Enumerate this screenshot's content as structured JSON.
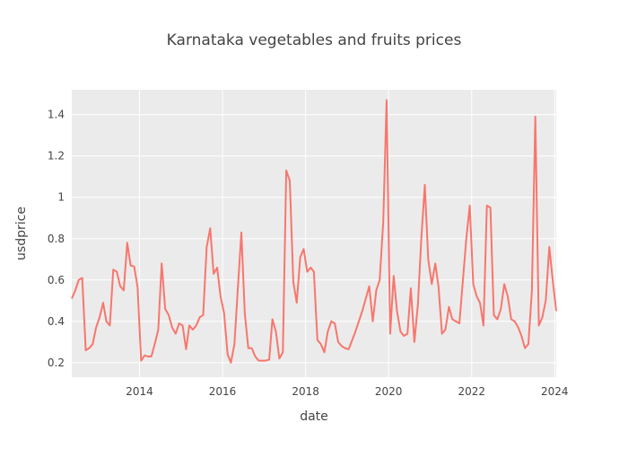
{
  "chart_data": {
    "type": "line",
    "title": "Karnataka vegetables and fruits prices",
    "xlabel": "date",
    "ylabel": "usdprice",
    "x_ticks": [
      "2014",
      "2016",
      "2018",
      "2020",
      "2022",
      "2024"
    ],
    "y_ticks": [
      "0.2",
      "0.4",
      "0.6",
      "0.8",
      "1",
      "1.2",
      "1.4"
    ],
    "xlim": [
      "2012-05-15",
      "2024-01-15"
    ],
    "ylim": [
      0.13,
      1.52
    ],
    "grid": true,
    "colors": {
      "plot_bg": "#ebebeb",
      "grid": "#ffffff",
      "line": "#f8766d"
    },
    "series": [
      {
        "name": "",
        "color": "#f8766d",
        "x": [
          "2012-05-15",
          "2012-06-15",
          "2012-07-15",
          "2012-08-15",
          "2012-09-15",
          "2012-10-15",
          "2012-11-15",
          "2012-12-15",
          "2013-01-15",
          "2013-02-15",
          "2013-03-15",
          "2013-04-15",
          "2013-05-15",
          "2013-06-15",
          "2013-07-15",
          "2013-08-15",
          "2013-09-15",
          "2013-10-15",
          "2013-11-15",
          "2013-12-15",
          "2014-01-15",
          "2014-02-15",
          "2014-03-15",
          "2014-04-15",
          "2014-05-15",
          "2014-06-15",
          "2014-07-15",
          "2014-08-15",
          "2014-09-15",
          "2014-10-15",
          "2014-11-15",
          "2014-12-15",
          "2015-01-15",
          "2015-02-15",
          "2015-03-15",
          "2015-04-15",
          "2015-05-15",
          "2015-06-15",
          "2015-07-15",
          "2015-08-15",
          "2015-09-15",
          "2015-10-15",
          "2015-11-15",
          "2015-12-15",
          "2016-01-15",
          "2016-02-15",
          "2016-03-15",
          "2016-04-15",
          "2016-05-15",
          "2016-06-15",
          "2016-07-15",
          "2016-08-15",
          "2016-09-15",
          "2016-10-15",
          "2016-11-15",
          "2016-12-15",
          "2017-01-15",
          "2017-02-15",
          "2017-03-15",
          "2017-04-15",
          "2017-05-15",
          "2017-06-15",
          "2017-07-15",
          "2017-08-15",
          "2017-09-15",
          "2017-10-15",
          "2017-11-15",
          "2017-12-15",
          "2018-01-15",
          "2018-02-15",
          "2018-03-15",
          "2018-04-15",
          "2018-05-15",
          "2018-06-15",
          "2018-07-15",
          "2018-08-15",
          "2018-09-15",
          "2018-10-15",
          "2018-11-15",
          "2018-12-15",
          "2019-01-15",
          "2019-03-15",
          "2019-05-15",
          "2019-07-15",
          "2019-08-15",
          "2019-09-15",
          "2019-10-15",
          "2019-11-15",
          "2019-12-15",
          "2020-01-15",
          "2020-02-15",
          "2020-03-15",
          "2020-04-15",
          "2020-05-15",
          "2020-06-15",
          "2020-07-15",
          "2020-08-15",
          "2020-09-15",
          "2020-10-15",
          "2020-11-15",
          "2020-12-15",
          "2021-01-15",
          "2021-02-15",
          "2021-03-15",
          "2021-04-15",
          "2021-05-15",
          "2021-06-15",
          "2021-07-15",
          "2021-08-15",
          "2021-09-15",
          "2021-11-15",
          "2021-12-15",
          "2022-01-15",
          "2022-02-15",
          "2022-03-15",
          "2022-04-15",
          "2022-05-15",
          "2022-06-15",
          "2022-07-15",
          "2022-08-15",
          "2022-09-15",
          "2022-10-15",
          "2022-11-15",
          "2022-12-15",
          "2023-01-15",
          "2023-02-15",
          "2023-03-15",
          "2023-04-15",
          "2023-05-15",
          "2023-06-15",
          "2023-07-15",
          "2023-08-15",
          "2023-09-15",
          "2023-10-15",
          "2023-11-15",
          "2023-12-15",
          "2024-01-15"
        ],
        "y": [
          0.51,
          0.55,
          0.6,
          0.61,
          0.26,
          0.27,
          0.29,
          0.37,
          0.42,
          0.49,
          0.4,
          0.38,
          0.65,
          0.64,
          0.57,
          0.55,
          0.78,
          0.67,
          0.665,
          0.565,
          0.21,
          0.235,
          0.23,
          0.23,
          0.29,
          0.36,
          0.68,
          0.46,
          0.43,
          0.37,
          0.34,
          0.39,
          0.38,
          0.265,
          0.38,
          0.36,
          0.38,
          0.42,
          0.43,
          0.76,
          0.85,
          0.63,
          0.66,
          0.52,
          0.44,
          0.24,
          0.2,
          0.29,
          0.56,
          0.83,
          0.44,
          0.27,
          0.27,
          0.23,
          0.21,
          0.21,
          0.21,
          0.215,
          0.41,
          0.35,
          0.22,
          0.25,
          1.13,
          1.08,
          0.59,
          0.49,
          0.71,
          0.75,
          0.64,
          0.66,
          0.64,
          0.31,
          0.29,
          0.25,
          0.35,
          0.4,
          0.39,
          0.3,
          0.28,
          0.27,
          0.265,
          0.35,
          0.45,
          0.57,
          0.4,
          0.55,
          0.6,
          0.88,
          1.47,
          0.34,
          0.62,
          0.45,
          0.35,
          0.33,
          0.34,
          0.56,
          0.3,
          0.48,
          0.8,
          1.06,
          0.7,
          0.58,
          0.68,
          0.57,
          0.34,
          0.36,
          0.47,
          0.41,
          0.4,
          0.39,
          0.8,
          0.96,
          0.58,
          0.52,
          0.49,
          0.38,
          0.96,
          0.95,
          0.43,
          0.41,
          0.46,
          0.58,
          0.52,
          0.41,
          0.4,
          0.37,
          0.33,
          0.27,
          0.29,
          0.55,
          1.39,
          0.38,
          0.42,
          0.5,
          0.76,
          0.6,
          0.45
        ]
      }
    ]
  }
}
